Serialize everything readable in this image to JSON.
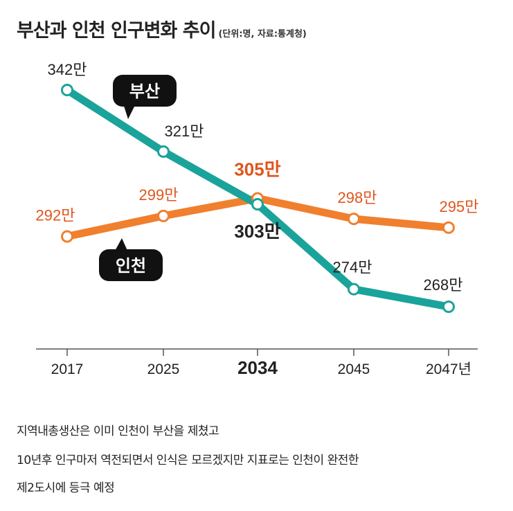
{
  "title": "부산과 인천 인구변화 추이",
  "subtitle": "(단위:명, 자료:통계청)",
  "chart_data": {
    "type": "line",
    "categories": [
      "2017",
      "2025",
      "2034",
      "2045",
      "2047년"
    ],
    "highlight_category": "2034",
    "ylim": [
      260,
      345
    ],
    "grid": false,
    "series": [
      {
        "name": "부산",
        "color": "#1aa39a",
        "values": [
          342,
          321,
          303,
          274,
          268
        ],
        "labels": [
          "342만",
          "321만",
          "303만",
          "274만",
          "268만"
        ]
      },
      {
        "name": "인천",
        "color": "#f07f2e",
        "values": [
          292,
          299,
          305,
          298,
          295
        ],
        "labels": [
          "292만",
          "299만",
          "305만",
          "298만",
          "295만"
        ]
      }
    ]
  },
  "captions": [
    "지역내총생산은 이미 인천이 부산을 제쳤고",
    "10년후 인구마저 역전되면서 인식은 모르겠지만 지표로는 인천이 완전한",
    "제2도시에 등극 예정"
  ]
}
